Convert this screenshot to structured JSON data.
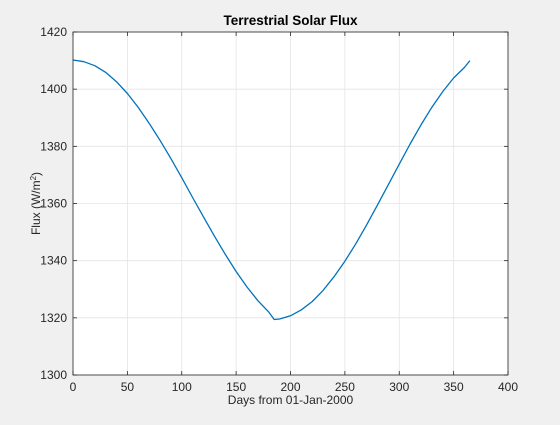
{
  "chart_data": {
    "type": "line",
    "title": "Terrestrial Solar Flux",
    "xlabel": "Days from 01-Jan-2000",
    "ylabel": {
      "prefix": "Flux (W/m",
      "sup": "2",
      "suffix": ")"
    },
    "xlim": [
      0,
      400
    ],
    "ylim": [
      1300,
      1420
    ],
    "xticks": [
      0,
      50,
      100,
      150,
      200,
      250,
      300,
      350,
      400
    ],
    "yticks": [
      1300,
      1320,
      1340,
      1360,
      1380,
      1400,
      1420
    ],
    "grid": true,
    "series": [
      {
        "color": "#0072bd",
        "x": [
          0,
          10,
          20,
          30,
          40,
          50,
          60,
          70,
          80,
          90,
          100,
          110,
          120,
          130,
          140,
          150,
          160,
          170,
          180,
          185,
          190,
          200,
          210,
          220,
          230,
          240,
          250,
          260,
          270,
          280,
          290,
          300,
          310,
          320,
          330,
          340,
          350,
          360,
          365
        ],
        "y": [
          1410.2,
          1409.6,
          1408.2,
          1405.9,
          1402.6,
          1398.5,
          1393.6,
          1388.1,
          1382.1,
          1375.7,
          1369.0,
          1362.1,
          1355.3,
          1348.6,
          1342.2,
          1336.2,
          1330.8,
          1326.0,
          1322.0,
          1319.4,
          1319.6,
          1320.7,
          1322.8,
          1325.7,
          1329.6,
          1334.4,
          1339.8,
          1345.9,
          1352.5,
          1359.5,
          1366.6,
          1373.8,
          1380.8,
          1387.5,
          1393.7,
          1399.2,
          1403.9,
          1407.6,
          1410.0
        ]
      }
    ]
  }
}
